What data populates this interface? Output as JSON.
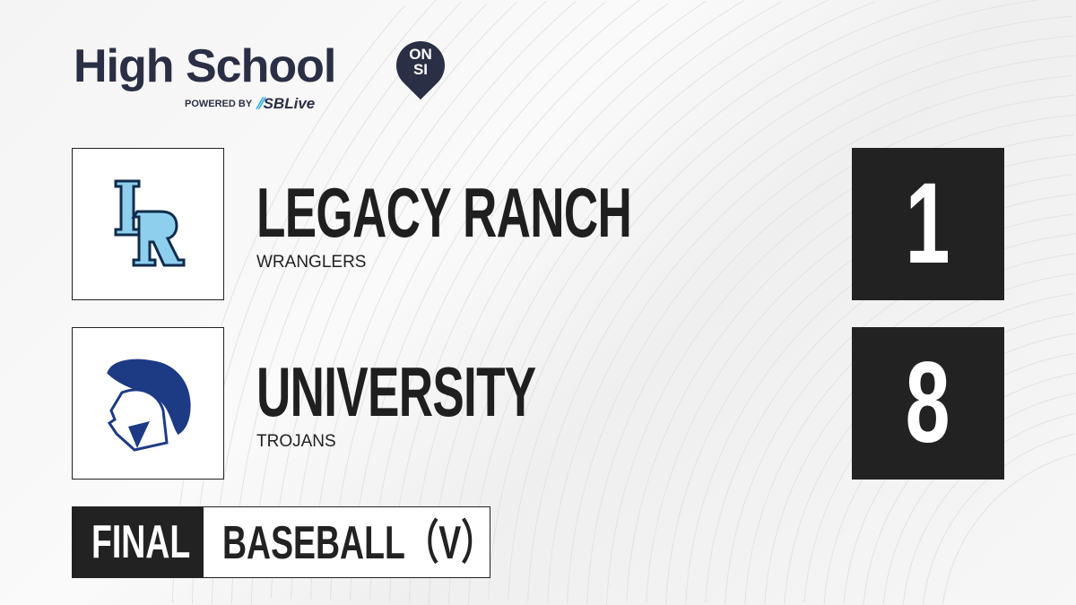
{
  "brand": {
    "title": "High School",
    "badge_top": "ON",
    "badge_bottom": "SI",
    "powered_by": "POWERED BY",
    "partner": "SBLive"
  },
  "teams": [
    {
      "name": "LEGACY RANCH",
      "mascot": "WRANGLERS",
      "score": "1",
      "logo": "lr-monogram-logo",
      "logo_colors": [
        "#8ecfed",
        "#0f2c4c"
      ]
    },
    {
      "name": "UNIVERSITY",
      "mascot": "TROJANS",
      "score": "8",
      "logo": "trojan-helmet-logo",
      "logo_colors": [
        "#1d3a85"
      ]
    }
  ],
  "status": "FINAL",
  "sport": "BASEBALL（V）",
  "colors": {
    "dark": "#222222",
    "brand": "#2b2f45",
    "accent": "#2aa8e0"
  }
}
